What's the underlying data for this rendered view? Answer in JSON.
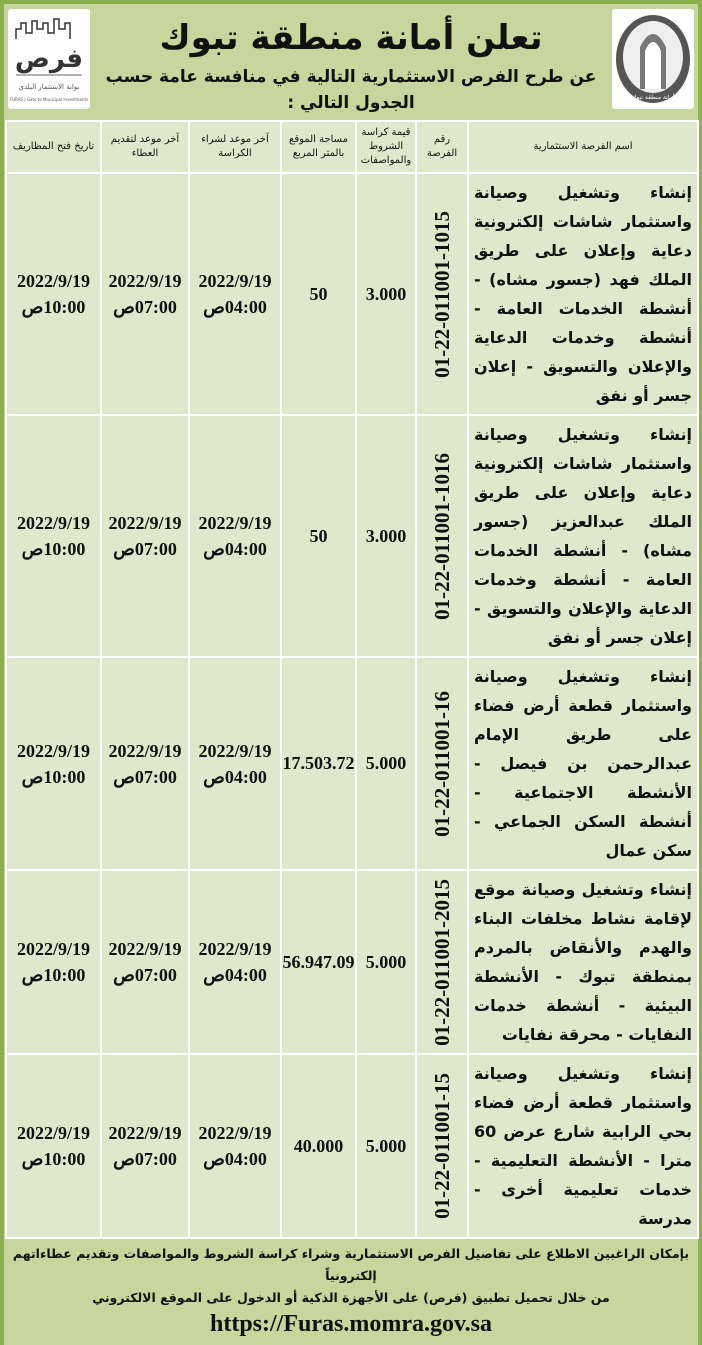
{
  "header": {
    "title": "تعلن أمانة منطقة تبوك",
    "subtitle": "عن طرح الفرص الاستثمارية التالية في منافسة عامة حسب الجدول التالي :",
    "left_logo_text": "فرص",
    "left_logo_caption": "بوابة الاستثمار البلدي",
    "left_logo_caption_en": "FURAS | Gate to Municipal Investments",
    "right_logo_text": "أمانة منطقة تبوك"
  },
  "table": {
    "headers": [
      "اسم الفرصة الاستثمارية",
      "رقم الفرصة",
      "قيمة كراسة الشروط والمواصفات",
      "مساحة الموقع بالمتر المربع",
      "آخر موعد لشراء الكراسة",
      "آخر موعد لتقديم العطاء",
      "تاريخ فتح المظاريف"
    ],
    "rows": [
      {
        "name": "إنشاء وتشغيل وصيانة واستثمار شاشات إلكترونية دعاية وإعلان على طريق الملك فهد (جسور مشاه) - أنشطة الخدمات العامة - أنشطة وخدمات الدعاية والإعلان والتسويق - إعلان جسر أو نفق",
        "id": "01-22-011001-1015",
        "fee": "3.000",
        "area": "50",
        "buy_date": "2022/9/19",
        "buy_time": "04:00ص",
        "submit_date": "2022/9/19",
        "submit_time": "07:00ص",
        "open_date": "2022/9/19",
        "open_time": "10:00ص"
      },
      {
        "name": "إنشاء وتشغيل وصيانة واستثمار شاشات إلكترونية دعاية وإعلان على طريق الملك عبدالعزيز (جسور مشاه) - أنشطة الخدمات العامة - أنشطة وخدمات الدعاية والإعلان والتسويق - إعلان جسر أو نفق",
        "id": "01-22-011001-1016",
        "fee": "3.000",
        "area": "50",
        "buy_date": "2022/9/19",
        "buy_time": "04:00ص",
        "submit_date": "2022/9/19",
        "submit_time": "07:00ص",
        "open_date": "2022/9/19",
        "open_time": "10:00ص"
      },
      {
        "name": "إنشاء وتشغيل وصيانة واستثمار قطعة أرض فضاء على طريق الإمام عبدالرحمن بن فيصل - الأنشطة الاجتماعية - أنشطة السكن الجماعي - سكن عمال",
        "id": "01-22-011001-16",
        "fee": "5.000",
        "area": "17.503.72",
        "buy_date": "2022/9/19",
        "buy_time": "04:00ص",
        "submit_date": "2022/9/19",
        "submit_time": "07:00ص",
        "open_date": "2022/9/19",
        "open_time": "10:00ص"
      },
      {
        "name": "إنشاء وتشغيل وصيانة موقع لإقامة نشاط مخلفات البناء والهدم والأنقاض بالمردم بمنطقة تبوك - الأنشطة البيئية - أنشطة خدمات النفايات - محرقة نفايات",
        "id": "01-22-011001-2015",
        "fee": "5.000",
        "area": "56.947.09",
        "buy_date": "2022/9/19",
        "buy_time": "04:00ص",
        "submit_date": "2022/9/19",
        "submit_time": "07:00ص",
        "open_date": "2022/9/19",
        "open_time": "10:00ص"
      },
      {
        "name": "إنشاء وتشغيل وصيانة واستثمار قطعة أرض فضاء بحي الرابية شارع عرض 60 مترا - الأنشطة التعليمية - خدمات تعليمية أخرى - مدرسة",
        "id": "01-22-011001-15",
        "fee": "5.000",
        "area": "40.000",
        "buy_date": "2022/9/19",
        "buy_time": "04:00ص",
        "submit_date": "2022/9/19",
        "submit_time": "07:00ص",
        "open_date": "2022/9/19",
        "open_time": "10:00ص"
      }
    ]
  },
  "footer": {
    "line1": "بإمكان الراغبين الاطلاع على تفاصيل الفرص الاستثمارية وشراء كراسة الشروط والمواصفات وتقديم عطاءاتهم إلكترونياً",
    "line2": "من خلال تحميل تطبيق (فرص) على الأجهزة الذكية أو الدخول على الموقع الالكتروني",
    "url": "https://Furas.momra.gov.sa"
  },
  "colors": {
    "frame": "#8db04f",
    "background": "#c6d69c",
    "cell": "#dfe8cc"
  }
}
